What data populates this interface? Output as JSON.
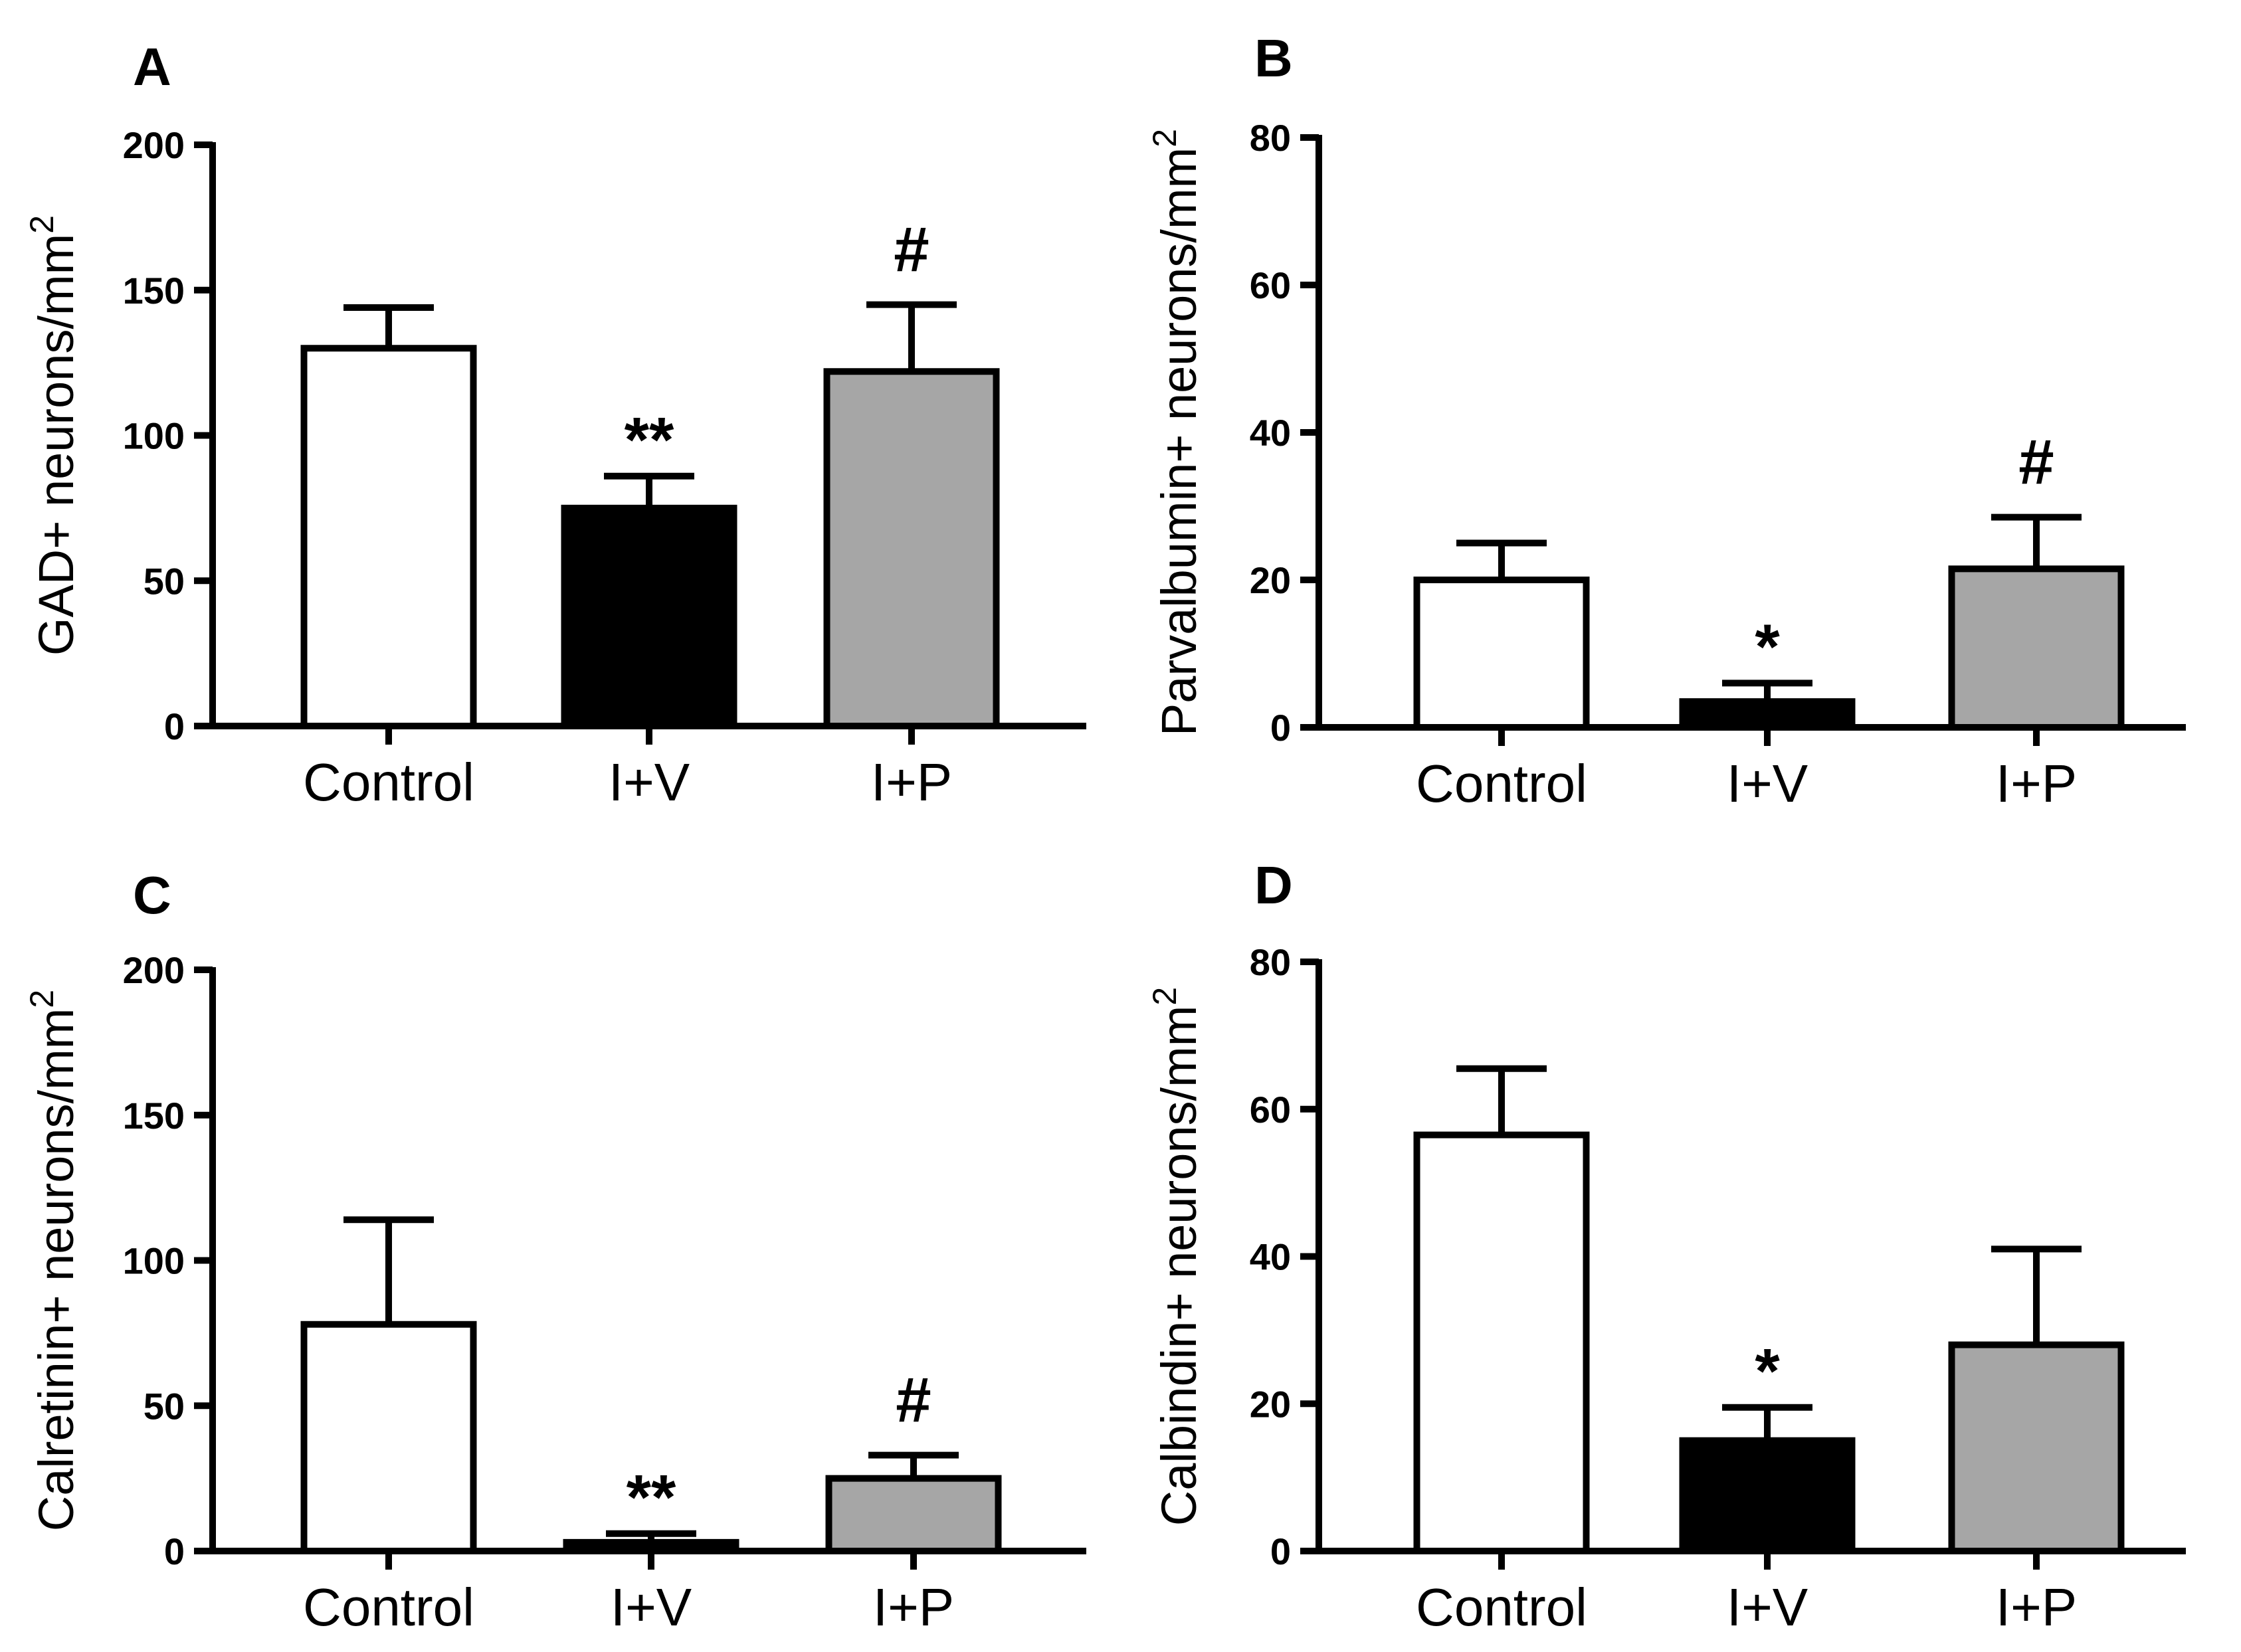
{
  "figure": {
    "panels": [
      "A",
      "B",
      "C",
      "D"
    ]
  },
  "chart_data": [
    {
      "panel": "A",
      "type": "bar",
      "categories": [
        "Control",
        "I+V",
        "I+P"
      ],
      "values": [
        130,
        75,
        122
      ],
      "errors": [
        14,
        11,
        23
      ],
      "colors": [
        "#ffffff",
        "#000000",
        "#a6a6a6"
      ],
      "significance": [
        "",
        "**",
        "#"
      ],
      "ylabel": "GAD+ neurons/mm",
      "ylabel_sup": "2",
      "ylim": [
        0,
        200
      ],
      "yticks": [
        0,
        50,
        100,
        150,
        200
      ],
      "ytick_labels": [
        "0",
        "50",
        "100",
        "150",
        "200"
      ]
    },
    {
      "panel": "B",
      "type": "bar",
      "categories": [
        "Control",
        "I+V",
        "I+P"
      ],
      "values": [
        20,
        3.5,
        21.5
      ],
      "errors": [
        5,
        2.5,
        7
      ],
      "colors": [
        "#ffffff",
        "#000000",
        "#a6a6a6"
      ],
      "significance": [
        "",
        "*",
        "#"
      ],
      "ylabel": "Parvalbumin+ neurons/mm",
      "ylabel_sup": "2",
      "ylim": [
        0,
        80
      ],
      "yticks": [
        0,
        20,
        40,
        60,
        80
      ],
      "ytick_labels": [
        "0",
        "20",
        "40",
        "60",
        "80"
      ]
    },
    {
      "panel": "C",
      "type": "bar",
      "categories": [
        "Control",
        "I+V",
        "I+P"
      ],
      "values": [
        78,
        3,
        25
      ],
      "errors": [
        36,
        3,
        8
      ],
      "colors": [
        "#ffffff",
        "#000000",
        "#a6a6a6"
      ],
      "significance": [
        "",
        "**",
        "#"
      ],
      "ylabel": "Calretinin+ neurons/mm",
      "ylabel_sup": "2",
      "ylim": [
        0,
        200
      ],
      "yticks": [
        0,
        50,
        100,
        150,
        200
      ],
      "ytick_labels": [
        "0",
        "50",
        "100",
        "150",
        "200"
      ]
    },
    {
      "panel": "D",
      "type": "bar",
      "categories": [
        "Control",
        "I+V",
        "I+P"
      ],
      "values": [
        56.5,
        15,
        28
      ],
      "errors": [
        9,
        4.5,
        13
      ],
      "colors": [
        "#ffffff",
        "#000000",
        "#a6a6a6"
      ],
      "significance": [
        "",
        "*",
        ""
      ],
      "ylabel": "Calbindin+ neurons/mm",
      "ylabel_sup": "2",
      "ylim": [
        0,
        80
      ],
      "yticks": [
        0,
        20,
        40,
        60,
        80
      ],
      "ytick_labels": [
        "0",
        "20",
        "40",
        "60",
        "80"
      ]
    }
  ]
}
